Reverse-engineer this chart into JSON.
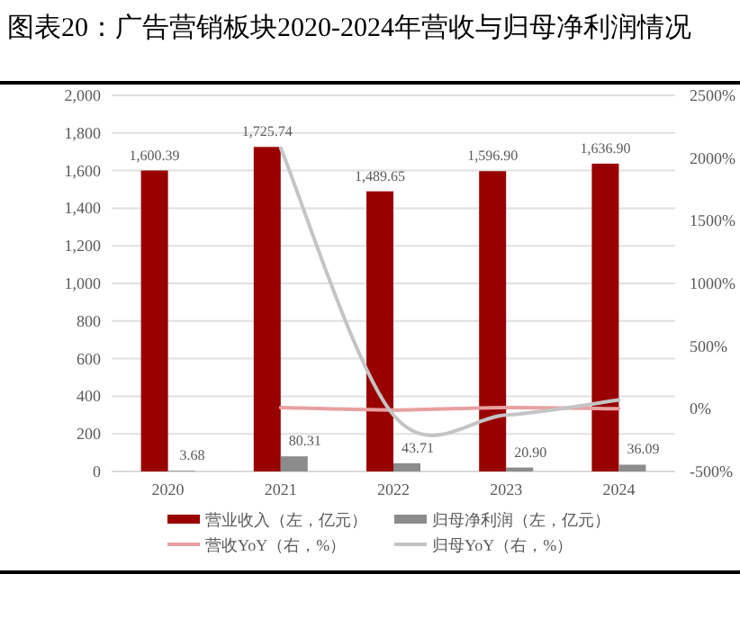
{
  "chart_data": {
    "type": "bar",
    "title": "图表20：广告营销板块2020-2024年营收与归母净利润情况",
    "categories": [
      "2020",
      "2021",
      "2022",
      "2023",
      "2024"
    ],
    "series": [
      {
        "name": "营业收入（左，亿元）",
        "color": "#990000",
        "values": [
          1600.39,
          1725.74,
          1489.65,
          1596.9,
          1636.9
        ],
        "value_labels": [
          "1,600.39",
          "1,725.74",
          "1,489.65",
          "1,596.90",
          "1,636.90"
        ]
      },
      {
        "name": "归母净利润（左，亿元）",
        "color": "#8c8c8c",
        "values": [
          3.68,
          80.31,
          43.71,
          20.9,
          36.09
        ],
        "value_labels": [
          "3.68",
          "80.31",
          "43.71",
          "20.90",
          "36.09"
        ]
      },
      {
        "name": "营收YoY（右，%）",
        "type": "line",
        "axis": "y2",
        "color": "#e8a0a0",
        "values": [
          null,
          10,
          -10,
          10,
          0
        ]
      },
      {
        "name": "归母YoY（右，%）",
        "type": "line",
        "axis": "y2",
        "color": "#c4c4c4",
        "values": [
          null,
          2080,
          -50,
          -50,
          70
        ]
      }
    ],
    "ylim": [
      0,
      2000
    ],
    "yticks": [
      0,
      200,
      400,
      600,
      800,
      {
        "value": 1000,
        "label": "1,000"
      },
      {
        "value": 1200,
        "label": "1,200"
      },
      {
        "value": 1400,
        "label": "1,400"
      },
      {
        "value": 1600,
        "label": "1,600"
      },
      {
        "value": 1800,
        "label": "1,800"
      },
      {
        "value": 2000,
        "label": "2,000"
      }
    ],
    "y2lim": [
      -500,
      2500
    ],
    "y2ticks": [
      {
        "value": -500,
        "label": "-500%"
      },
      {
        "value": 0,
        "label": "0%"
      },
      {
        "value": 500,
        "label": "500%"
      },
      {
        "value": 1000,
        "label": "1000%"
      },
      {
        "value": 1500,
        "label": "1500%"
      },
      {
        "value": 2000,
        "label": "2000%"
      },
      {
        "value": 2500,
        "label": "2500%"
      }
    ],
    "grid": "y",
    "legend": "bottom"
  }
}
